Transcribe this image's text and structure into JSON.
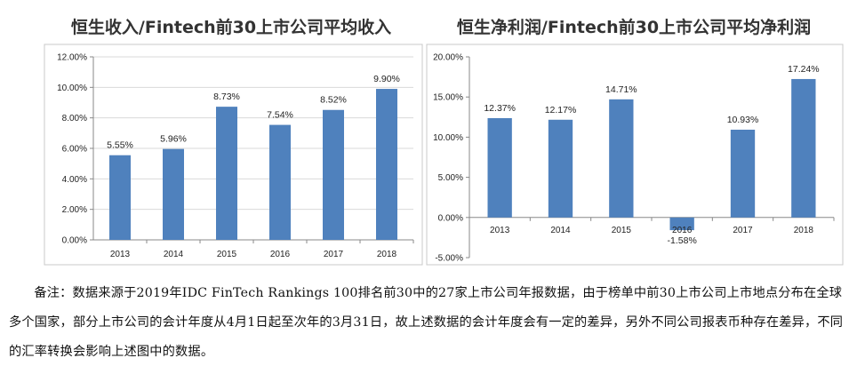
{
  "chart_data": [
    {
      "type": "bar",
      "title": "恒生收入/Fintech前30上市公司平均收入",
      "categories": [
        "2013",
        "2014",
        "2015",
        "2016",
        "2017",
        "2018"
      ],
      "values": [
        5.55,
        5.96,
        8.73,
        7.54,
        8.52,
        9.9
      ],
      "data_labels": [
        "5.55%",
        "5.96%",
        "8.73%",
        "7.54%",
        "8.52%",
        "9.90%"
      ],
      "ylim": [
        0,
        12
      ],
      "yticks": [
        0,
        2,
        4,
        6,
        8,
        10,
        12
      ],
      "ytick_labels": [
        "0.00%",
        "2.00%",
        "4.00%",
        "6.00%",
        "8.00%",
        "10.00%",
        "12.00%"
      ],
      "grid": true,
      "bar_color": "#4f81bd"
    },
    {
      "type": "bar",
      "title": "恒生净利润/Fintech前30上市公司平均净利润",
      "categories": [
        "2013",
        "2014",
        "2015",
        "2016",
        "2017",
        "2018"
      ],
      "values": [
        12.37,
        12.17,
        14.71,
        -1.58,
        10.93,
        17.24
      ],
      "data_labels": [
        "12.37%",
        "12.17%",
        "14.71%",
        "-1.58%",
        "10.93%",
        "17.24%"
      ],
      "ylim": [
        -5,
        20
      ],
      "yticks": [
        -5,
        0,
        5,
        10,
        15,
        20
      ],
      "ytick_labels": [
        "-5.00%",
        "0.00%",
        "5.00%",
        "10.00%",
        "15.00%",
        "20.00%"
      ],
      "grid": false,
      "bar_color": "#4f81bd"
    }
  ],
  "note": "备注：数据来源于2019年IDC FinTech Rankings 100排名前30中的27家上市公司年报数据，由于榜单中前30上市公司上市地点分布在全球多个国家，部分上市公司的会计年度从4月1日起至次年的3月31日，故上述数据的会计年度会有一定的差异，另外不同公司报表币种存在差异，不同的汇率转换会影响上述图中的数据。"
}
